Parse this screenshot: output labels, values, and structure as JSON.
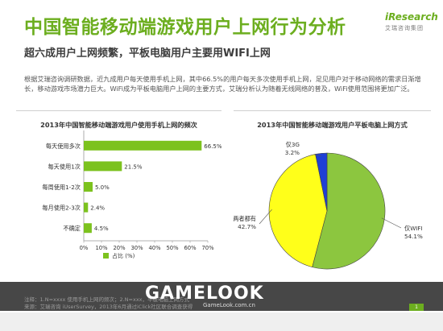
{
  "header": {
    "title": "中国智能移动端游戏用户上网行为分析",
    "subtitle": "超六成用户上网频繁，平板电脑用户主要用WIFI上网",
    "logo_main": "iResearch",
    "logo_sub": "艾瑞咨询集团"
  },
  "body_text": "根据艾瑞咨询调研数据，近九成用户每天使用手机上网，其中66.5%的用户每天多次使用手机上网，足见用户对于移动网络的需求日渐增长，移动游戏市场潜力巨大。WiFi成为平板电脑用户上网的主要方式，艾瑞分析认为随着无线网络的普及，WiFi使用范围将更加广泛。",
  "watermark": {
    "logo": "GAMELOOK",
    "url": "GameLook.com.cn"
  },
  "note": "注释：1.N=xxxx 使用手机上网的频次；2.N=xxx，平板电脑上网方式",
  "note2": "来源：艾瑞咨询 iUserSurvey，2013年6月通过iClick社区联合调查获得",
  "page_number": "1",
  "colors": {
    "accent": "#6cae1f",
    "bar": "#7cc21e",
    "pie_wifi": "#8cc63f",
    "pie_both": "#ffff1a",
    "pie_3g": "#1f3fd6"
  },
  "chart_data": [
    {
      "type": "bar",
      "orientation": "horizontal",
      "title": "2013年中国智能移动端游戏用户使用手机上网的频次",
      "categories": [
        "每天使用多次",
        "每天使用1次",
        "每周使用1-2次",
        "每月使用2-3次",
        "不确定"
      ],
      "values": [
        66.5,
        21.5,
        5.0,
        2.4,
        4.5
      ],
      "value_labels": [
        "66.5%",
        "21.5%",
        "5.0%",
        "2.4%",
        "4.5%"
      ],
      "series": [
        {
          "name": "占比 (%)",
          "values": [
            66.5,
            21.5,
            5.0,
            2.4,
            4.5
          ]
        }
      ],
      "xlim": [
        0,
        70
      ],
      "xticks": [
        "0%",
        "10%",
        "20%",
        "30%",
        "40%",
        "50%",
        "60%",
        "70%"
      ],
      "legend": "bottom",
      "grid": false
    },
    {
      "type": "pie",
      "title": "2013年中国智能移动端游戏用户平板电脑上网方式",
      "slices": [
        {
          "label": "仅WIFI",
          "value": 54.1,
          "value_label": "54.1%"
        },
        {
          "label": "两者都有",
          "value": 42.7,
          "value_label": "42.7%"
        },
        {
          "label": "仅3G",
          "value": 3.2,
          "value_label": "3.2%"
        }
      ]
    }
  ]
}
